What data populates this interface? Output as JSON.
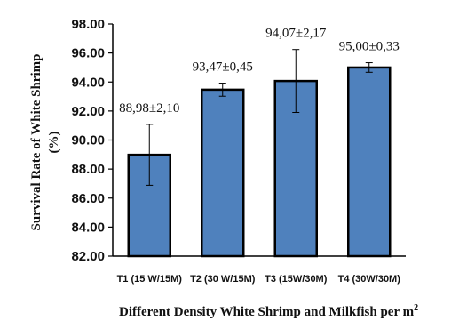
{
  "chart_data": {
    "type": "bar",
    "categories": [
      "T1 (15 W/15M)",
      "T2 (30 W/15M)",
      "T3 (15W/30M)",
      "T4 (30W/30M)"
    ],
    "values": [
      88.98,
      93.47,
      94.07,
      95.0
    ],
    "errors": [
      2.1,
      0.45,
      2.17,
      0.33
    ],
    "data_labels": [
      "88,98±2,10",
      "93,47±0,45",
      "94,07±2,17",
      "95,00±0,33"
    ],
    "ylim": [
      82.0,
      98.0
    ],
    "yticks": [
      "82.00",
      "84.00",
      "86.00",
      "88.00",
      "90.00",
      "92.00",
      "94.00",
      "96.00",
      "98.00"
    ],
    "ylabel_line1": "Survival Rate of White Shrimp",
    "ylabel_line2": "(%)",
    "xlabel": "Different Density White Shrimp and Milkfish per m",
    "xlabel_sup": "2",
    "bar_color": "#4f81bd",
    "bar_edge_color": "#000000",
    "grid": false,
    "legend": false
  }
}
